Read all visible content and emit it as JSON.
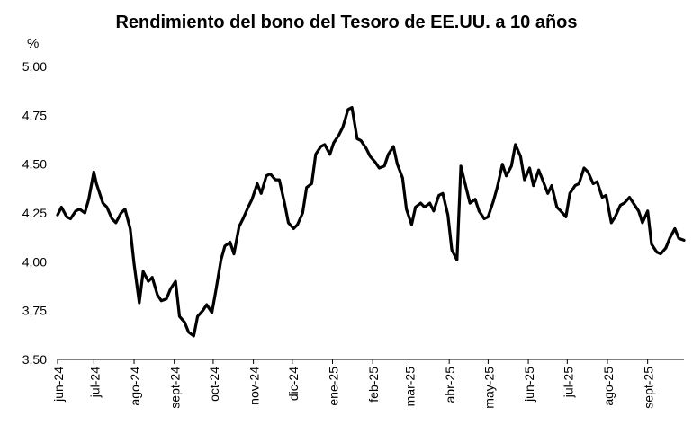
{
  "chart_data": {
    "type": "line",
    "title": "Rendimiento del bono del Tesoro de EE.UU. a 10 años",
    "unit_label": "%",
    "xlabel": "",
    "ylabel": "",
    "ylim": [
      3.5,
      5.0
    ],
    "y_ticks": [
      "3,50",
      "3,75",
      "4,00",
      "4,25",
      "4,50",
      "4,75",
      "5,00"
    ],
    "x_ticks": [
      "jun-24",
      "jul-24",
      "ago-24",
      "sept-24",
      "oct-24",
      "nov-24",
      "dic-24",
      "ene-25",
      "feb-25",
      "mar-25",
      "abr-25",
      "may-25",
      "jun-25",
      "jul-25",
      "ago-25",
      "sept-25"
    ],
    "grid": false,
    "legend": "none",
    "line_color": "#000000",
    "series": [
      {
        "x": [
          "2024-06-03",
          "2024-06-06",
          "2024-06-10",
          "2024-06-13",
          "2024-06-17",
          "2024-06-20",
          "2024-06-24",
          "2024-06-27",
          "2024-07-01",
          "2024-07-03",
          "2024-07-08",
          "2024-07-11",
          "2024-07-15",
          "2024-07-18",
          "2024-07-22",
          "2024-07-25",
          "2024-07-29",
          "2024-08-01",
          "2024-08-05",
          "2024-08-08",
          "2024-08-12",
          "2024-08-15",
          "2024-08-19",
          "2024-08-22",
          "2024-08-26",
          "2024-08-29",
          "2024-09-02",
          "2024-09-05",
          "2024-09-09",
          "2024-09-12",
          "2024-09-16",
          "2024-09-19",
          "2024-09-23",
          "2024-09-26",
          "2024-09-30",
          "2024-10-03",
          "2024-10-07",
          "2024-10-10",
          "2024-10-14",
          "2024-10-17",
          "2024-10-21",
          "2024-10-24",
          "2024-10-28",
          "2024-10-31",
          "2024-11-04",
          "2024-11-07",
          "2024-11-11",
          "2024-11-14",
          "2024-11-18",
          "2024-11-21",
          "2024-11-25",
          "2024-11-28",
          "2024-12-02",
          "2024-12-05",
          "2024-12-09",
          "2024-12-12",
          "2024-12-16",
          "2024-12-19",
          "2024-12-23",
          "2024-12-26",
          "2024-12-30",
          "2025-01-02",
          "2025-01-06",
          "2025-01-09",
          "2025-01-13",
          "2025-01-16",
          "2025-01-20",
          "2025-01-23",
          "2025-01-27",
          "2025-01-30",
          "2025-02-03",
          "2025-02-06",
          "2025-02-10",
          "2025-02-13",
          "2025-02-17",
          "2025-02-20",
          "2025-02-24",
          "2025-02-27",
          "2025-03-03",
          "2025-03-06",
          "2025-03-10",
          "2025-03-13",
          "2025-03-17",
          "2025-03-20",
          "2025-03-24",
          "2025-03-27",
          "2025-03-31",
          "2025-04-03",
          "2025-04-07",
          "2025-04-10",
          "2025-04-14",
          "2025-04-17",
          "2025-04-21",
          "2025-04-24",
          "2025-04-28",
          "2025-05-01",
          "2025-05-05",
          "2025-05-08",
          "2025-05-12",
          "2025-05-15",
          "2025-05-19",
          "2025-05-22",
          "2025-05-26",
          "2025-05-29",
          "2025-06-02",
          "2025-06-05",
          "2025-06-09",
          "2025-06-12",
          "2025-06-16",
          "2025-06-19",
          "2025-06-23",
          "2025-06-26",
          "2025-06-30",
          "2025-07-03",
          "2025-07-07",
          "2025-07-10",
          "2025-07-14",
          "2025-07-17",
          "2025-07-21",
          "2025-07-24",
          "2025-07-28",
          "2025-07-31",
          "2025-08-04",
          "2025-08-07",
          "2025-08-11",
          "2025-08-14",
          "2025-08-18",
          "2025-08-21",
          "2025-08-25",
          "2025-08-28",
          "2025-09-01",
          "2025-09-04",
          "2025-09-08",
          "2025-09-11",
          "2025-09-15",
          "2025-09-18",
          "2025-09-22",
          "2025-09-25",
          "2025-09-29"
        ],
        "values": [
          4.24,
          4.28,
          4.23,
          4.22,
          4.26,
          4.27,
          4.25,
          4.32,
          4.46,
          4.4,
          4.3,
          4.28,
          4.22,
          4.2,
          4.25,
          4.27,
          4.17,
          3.99,
          3.79,
          3.95,
          3.9,
          3.92,
          3.83,
          3.8,
          3.81,
          3.86,
          3.9,
          3.72,
          3.69,
          3.64,
          3.62,
          3.72,
          3.75,
          3.78,
          3.74,
          3.85,
          4.01,
          4.08,
          4.1,
          4.04,
          4.18,
          4.22,
          4.28,
          4.32,
          4.4,
          4.35,
          4.44,
          4.45,
          4.42,
          4.42,
          4.3,
          4.2,
          4.17,
          4.19,
          4.25,
          4.38,
          4.4,
          4.55,
          4.59,
          4.6,
          4.55,
          4.61,
          4.65,
          4.69,
          4.78,
          4.79,
          4.63,
          4.62,
          4.58,
          4.54,
          4.51,
          4.48,
          4.49,
          4.55,
          4.59,
          4.5,
          4.43,
          4.27,
          4.19,
          4.28,
          4.3,
          4.28,
          4.3,
          4.26,
          4.34,
          4.35,
          4.24,
          4.06,
          4.01,
          4.49,
          4.38,
          4.3,
          4.32,
          4.26,
          4.22,
          4.23,
          4.31,
          4.38,
          4.5,
          4.44,
          4.49,
          4.6,
          4.54,
          4.42,
          4.48,
          4.39,
          4.47,
          4.42,
          4.35,
          4.39,
          4.28,
          4.26,
          4.23,
          4.35,
          4.39,
          4.4,
          4.48,
          4.46,
          4.4,
          4.41,
          4.33,
          4.34,
          4.2,
          4.23,
          4.29,
          4.3,
          4.33,
          4.3,
          4.26,
          4.2,
          4.26,
          4.09,
          4.05,
          4.04,
          4.07,
          4.12,
          4.17,
          4.12,
          4.11
        ]
      }
    ]
  }
}
